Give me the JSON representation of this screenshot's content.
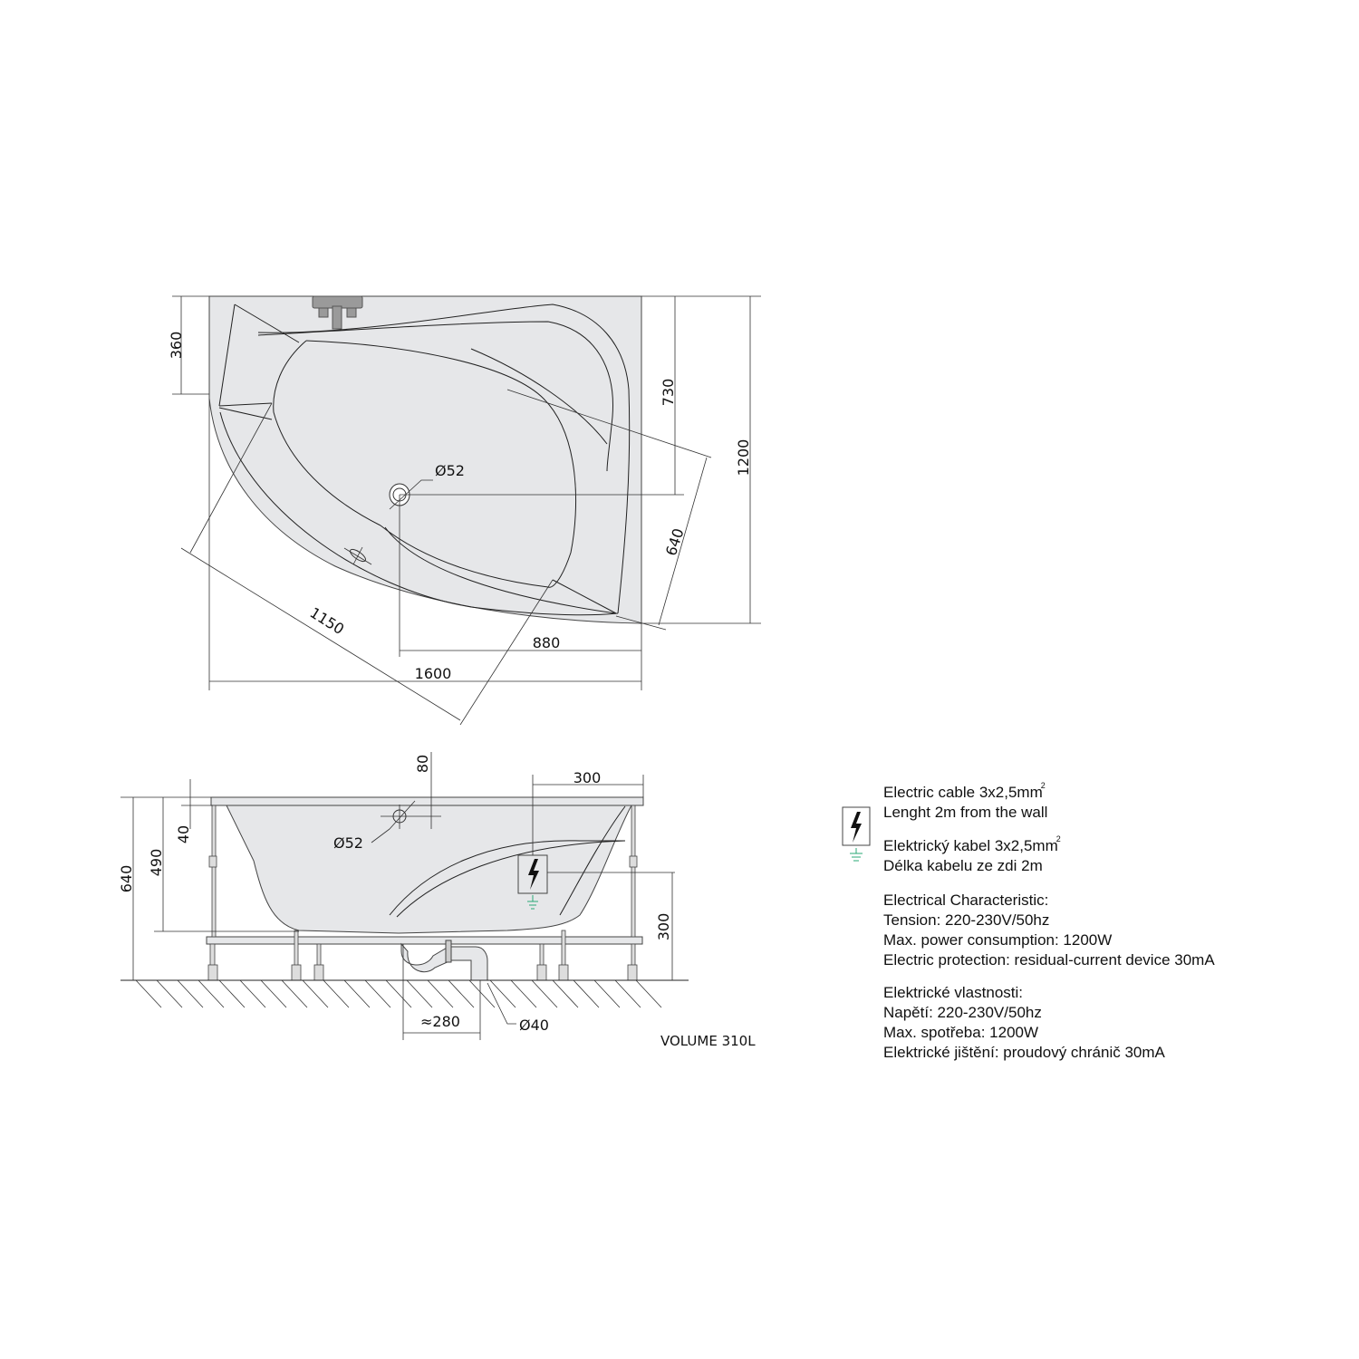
{
  "top_view": {
    "dimensions": {
      "d360": "360",
      "d730": "730",
      "d1200": "1200",
      "d640": "640",
      "d1150": "1150",
      "d880": "880",
      "d1600": "1600",
      "drain": "Ø52"
    }
  },
  "side_view": {
    "dimensions": {
      "d80": "80",
      "d300_top": "300",
      "d40": "40",
      "d490": "490",
      "d640": "640",
      "overflow": "Ø52",
      "d300_right": "300",
      "d280": "≈280",
      "waste": "Ø40"
    },
    "volume": "VOLUME 310L"
  },
  "info": {
    "cable_en_1": "Electric cable 3x2,5mm",
    "cable_en_sup": "2",
    "cable_en_2": "Lenght 2m from the wall",
    "cable_cz_1": "Elektrický kabel 3x2,5mm",
    "cable_cz_sup": "2",
    "cable_cz_2": "Délka kabelu ze zdi 2m",
    "el_en_title": "Electrical Characteristic:",
    "el_en_1": "Tension: 220-230V/50hz",
    "el_en_2": "Max. power consumption: 1200W",
    "el_en_3": "Electric protection: residual-current device 30mA",
    "el_cz_title": "Elektrické vlastnosti:",
    "el_cz_1": "Napětí: 220-230V/50hz",
    "el_cz_2": "Max. spotřeba: 1200W",
    "el_cz_3": "Elektrické jištění: proudový chránič 30mA"
  },
  "colors": {
    "tub_fill": "#e6e7e9",
    "ground_symbol": "#2aa876"
  },
  "icons": [
    "high-voltage-icon",
    "ground-icon"
  ]
}
